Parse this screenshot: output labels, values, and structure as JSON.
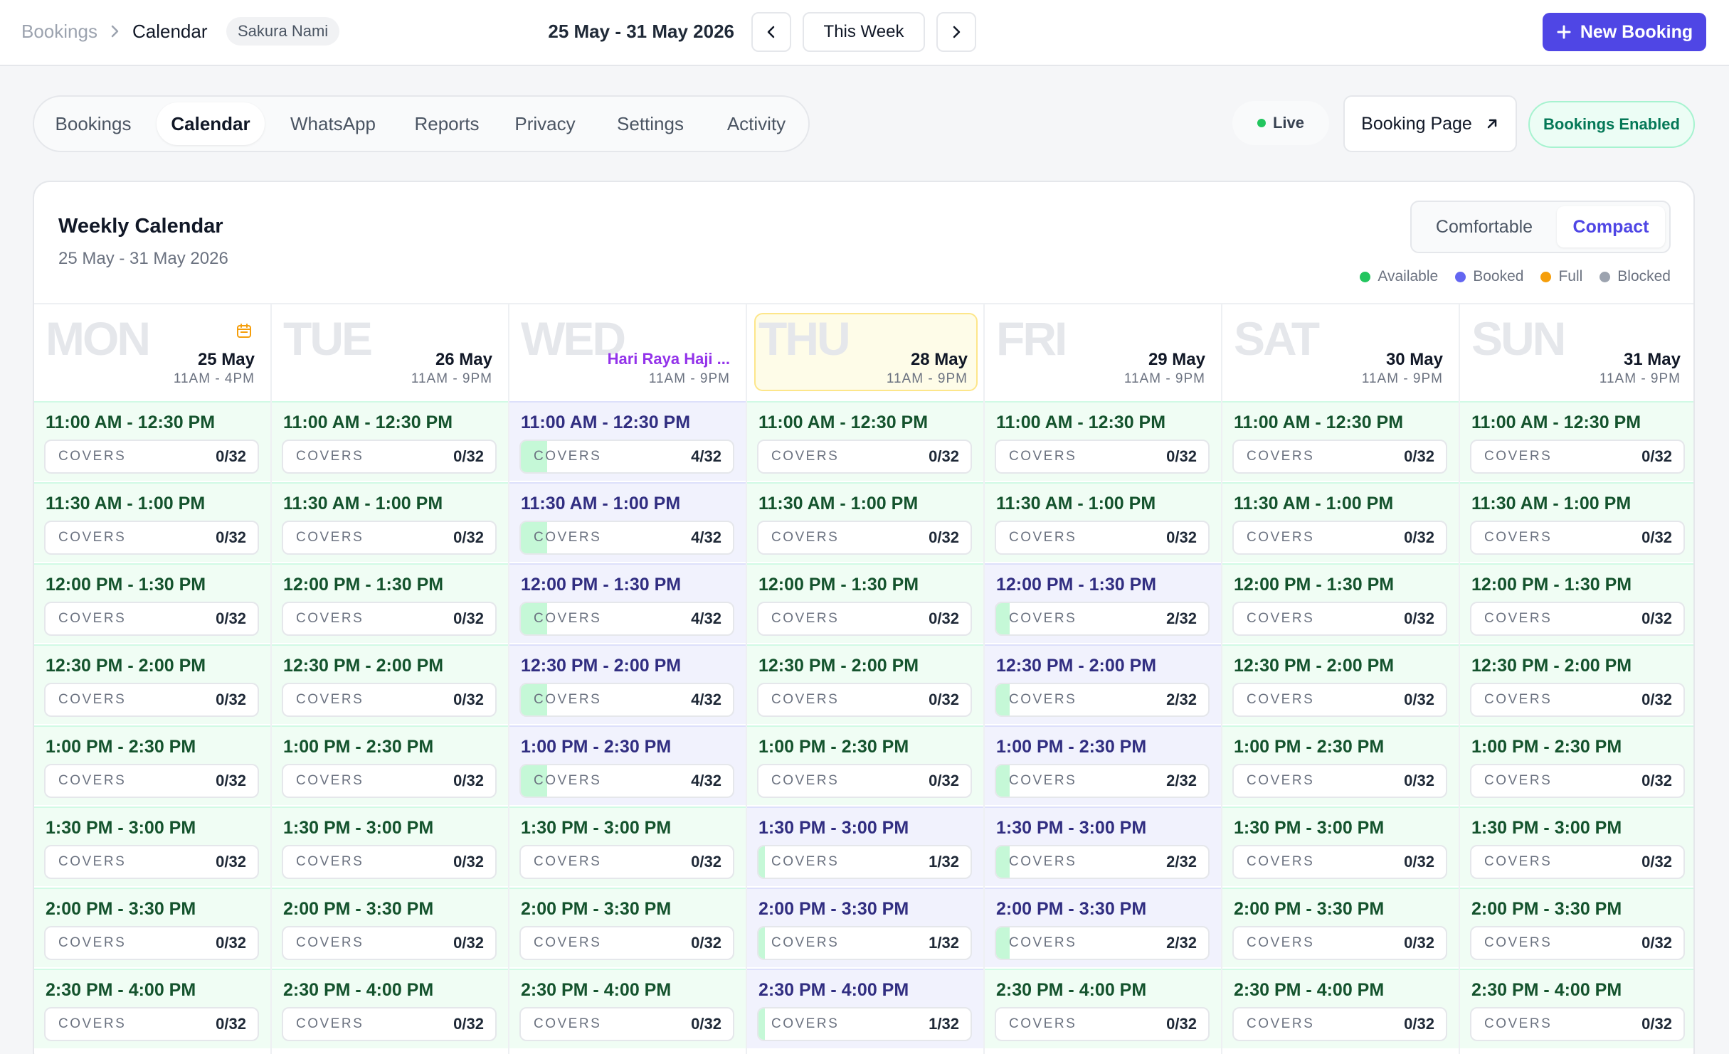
{
  "breadcrumb": {
    "root": "Bookings",
    "current": "Calendar"
  },
  "user_badge": "Sakura Nami",
  "week_range": "25 May - 31 May 2026",
  "this_week_label": "This Week",
  "new_booking_label": "New Booking",
  "tabs": [
    {
      "label": "Bookings",
      "active": false
    },
    {
      "label": "Calendar",
      "active": true
    },
    {
      "label": "WhatsApp",
      "active": false
    },
    {
      "label": "Reports",
      "active": false
    },
    {
      "label": "Privacy",
      "active": false
    },
    {
      "label": "Settings",
      "active": false
    },
    {
      "label": "Activity",
      "active": false
    }
  ],
  "status": {
    "live_label": "Live",
    "booking_page_label": "Booking Page",
    "bookings_enabled_label": "Bookings Enabled"
  },
  "calendar": {
    "title": "Weekly Calendar",
    "subtitle": "25 May - 31 May 2026",
    "density_options": [
      {
        "label": "Comfortable",
        "active": false
      },
      {
        "label": "Compact",
        "active": true
      }
    ],
    "legend": [
      {
        "label": "Available",
        "color": "#22c55e"
      },
      {
        "label": "Booked",
        "color": "#6366f1"
      },
      {
        "label": "Full",
        "color": "#f59e0b"
      },
      {
        "label": "Blocked",
        "color": "#9ca3af"
      }
    ],
    "covers_label": "COVERS",
    "capacity": 32,
    "time_slots": [
      "11:00 AM - 12:30 PM",
      "11:30 AM - 1:00 PM",
      "12:00 PM - 1:30 PM",
      "12:30 PM - 2:00 PM",
      "1:00 PM - 2:30 PM",
      "1:30 PM - 3:00 PM",
      "2:00 PM - 3:30 PM",
      "2:30 PM - 4:00 PM"
    ],
    "days": [
      {
        "abbr": "MON",
        "date": "25 May",
        "hours": "11AM - 4PM",
        "holiday": "",
        "today": false,
        "calendar_icon": true,
        "covers": [
          0,
          0,
          0,
          0,
          0,
          0,
          0,
          0
        ]
      },
      {
        "abbr": "TUE",
        "date": "26 May",
        "hours": "11AM - 9PM",
        "holiday": "",
        "today": false,
        "calendar_icon": false,
        "covers": [
          0,
          0,
          0,
          0,
          0,
          0,
          0,
          0
        ]
      },
      {
        "abbr": "WED",
        "date": "",
        "hours": "11AM - 9PM",
        "holiday": "Hari Raya Haji ...",
        "today": false,
        "calendar_icon": false,
        "covers": [
          4,
          4,
          4,
          4,
          4,
          0,
          0,
          0
        ]
      },
      {
        "abbr": "THU",
        "date": "28 May",
        "hours": "11AM - 9PM",
        "holiday": "",
        "today": true,
        "calendar_icon": false,
        "covers": [
          0,
          0,
          0,
          0,
          0,
          1,
          1,
          1
        ]
      },
      {
        "abbr": "FRI",
        "date": "29 May",
        "hours": "11AM - 9PM",
        "holiday": "",
        "today": false,
        "calendar_icon": false,
        "covers": [
          0,
          0,
          2,
          2,
          2,
          2,
          2,
          0
        ]
      },
      {
        "abbr": "SAT",
        "date": "30 May",
        "hours": "11AM - 9PM",
        "holiday": "",
        "today": false,
        "calendar_icon": false,
        "covers": [
          0,
          0,
          0,
          0,
          0,
          0,
          0,
          0
        ]
      },
      {
        "abbr": "SUN",
        "date": "31 May",
        "hours": "11AM - 9PM",
        "holiday": "",
        "today": false,
        "calendar_icon": false,
        "covers": [
          0,
          0,
          0,
          0,
          0,
          0,
          0,
          0
        ]
      }
    ]
  }
}
